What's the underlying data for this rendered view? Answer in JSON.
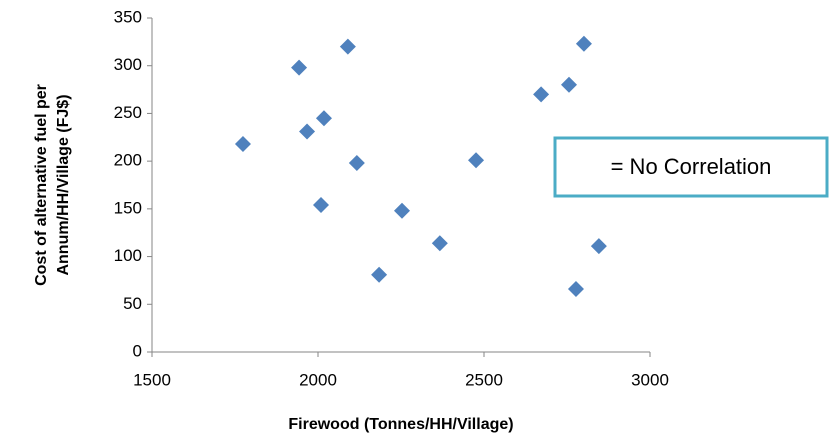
{
  "chart_data": {
    "type": "scatter",
    "xlabel": "Firewood (Tonnes/HH/Village)",
    "ylabel": [
      "Cost of alternative fuel per",
      "Annum/HH/Village (FJ$)"
    ],
    "annotation": "= No Correlation",
    "series": [
      {
        "color": "#4f81bd",
        "x": [
          1774,
          1943,
          1967,
          2018,
          2090,
          2117,
          2009,
          2184,
          2253,
          2367,
          2476,
          2672,
          2756,
          2801,
          2777,
          2846
        ],
        "values": [
          218,
          298,
          231,
          245,
          320,
          198,
          154,
          81,
          148,
          114,
          201,
          270,
          280,
          323,
          66,
          111
        ]
      }
    ],
    "xlim": [
      1500,
      3000
    ],
    "xticks": [
      1500,
      2000,
      2500,
      3000
    ],
    "ylim": [
      0,
      350
    ],
    "yticks": [
      0,
      50,
      100,
      150,
      200,
      250,
      300,
      350
    ],
    "grid": false
  }
}
